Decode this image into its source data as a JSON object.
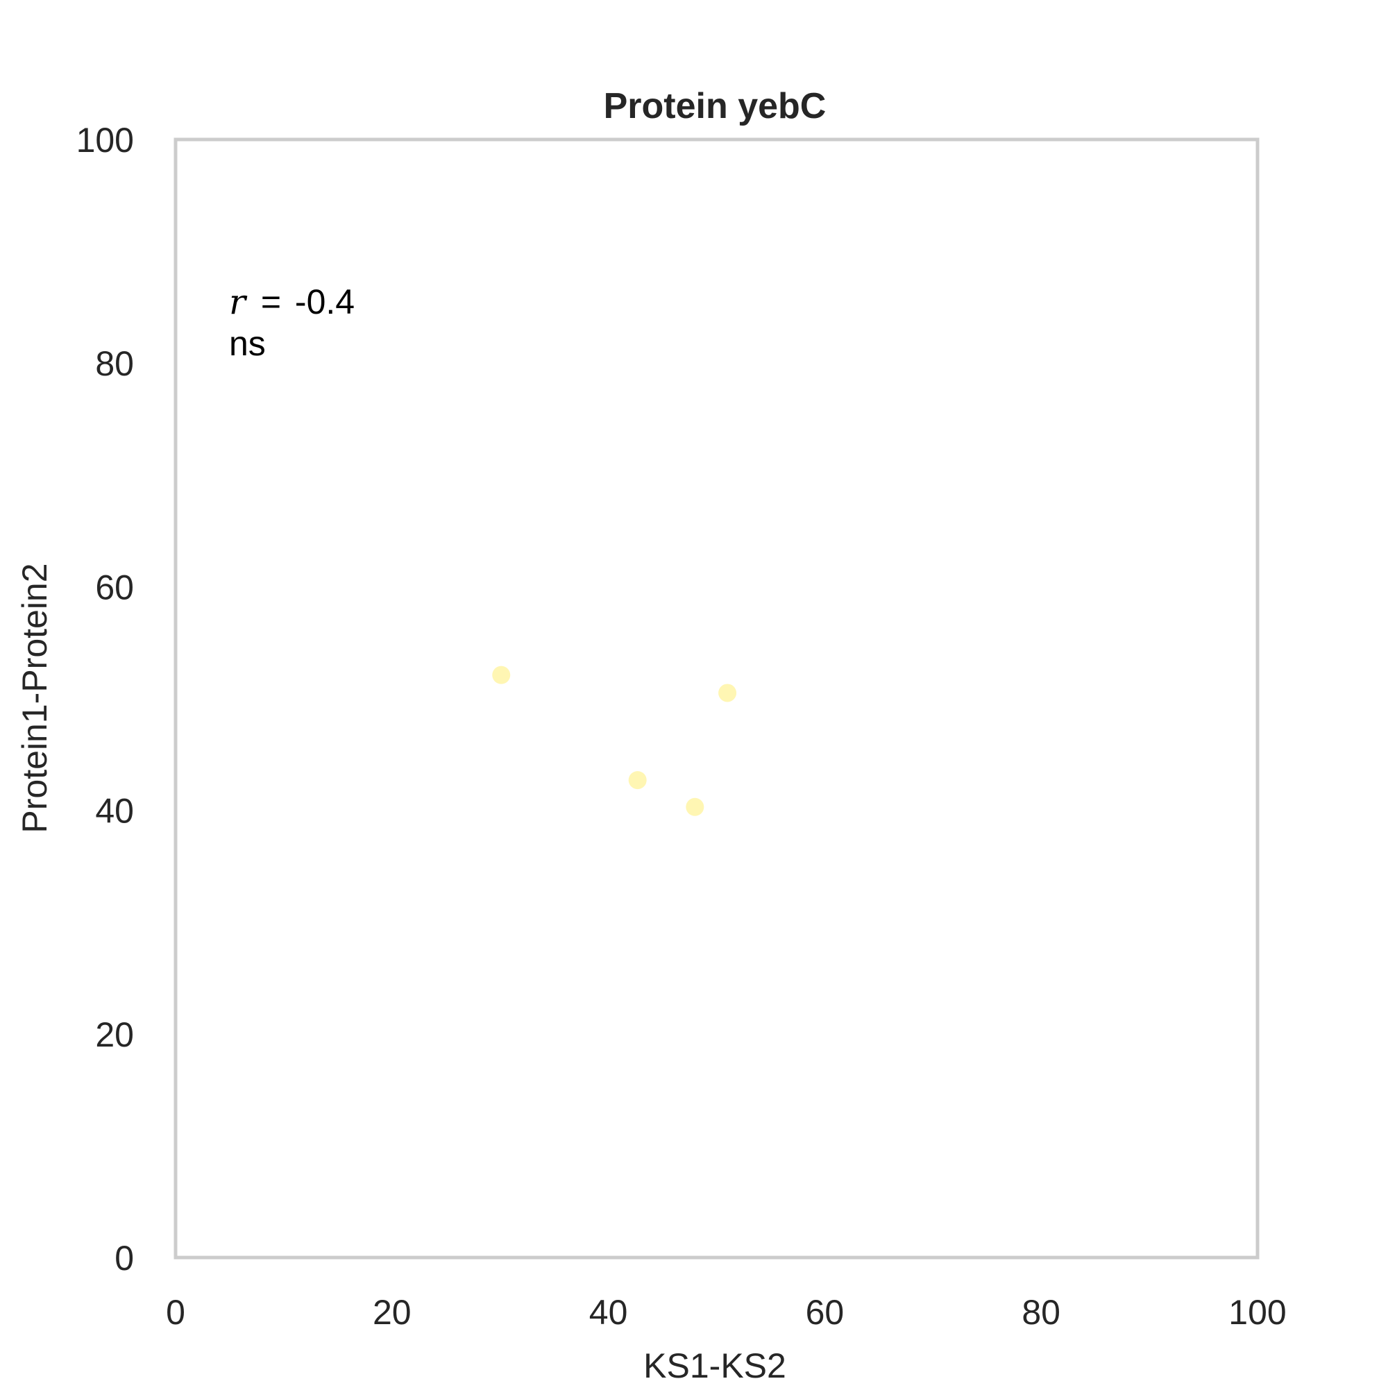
{
  "chart_data": {
    "type": "scatter",
    "title": "Protein yebC",
    "xlabel": "KS1-KS2",
    "ylabel": "Protein1-Protein2",
    "xlim": [
      0,
      100
    ],
    "ylim": [
      0,
      100
    ],
    "xticks": [
      "0",
      "20",
      "40",
      "60",
      "80",
      "100"
    ],
    "yticks": [
      "0",
      "20",
      "40",
      "60",
      "80",
      "100"
    ],
    "grid": false,
    "series": [
      {
        "color": "#fff6b3",
        "points": [
          {
            "x": 30.1,
            "y": 52.1
          },
          {
            "x": 42.7,
            "y": 42.7
          },
          {
            "x": 48.0,
            "y": 40.3
          },
          {
            "x": 51.0,
            "y": 50.5
          }
        ]
      }
    ],
    "annotation": {
      "r_symbol": "r",
      "r_equals": "=",
      "r_value": "-0.4",
      "significance": "ns"
    }
  },
  "colors": {
    "frame": "#cccccc",
    "text": "#262626",
    "marker": "#fff6b3"
  }
}
